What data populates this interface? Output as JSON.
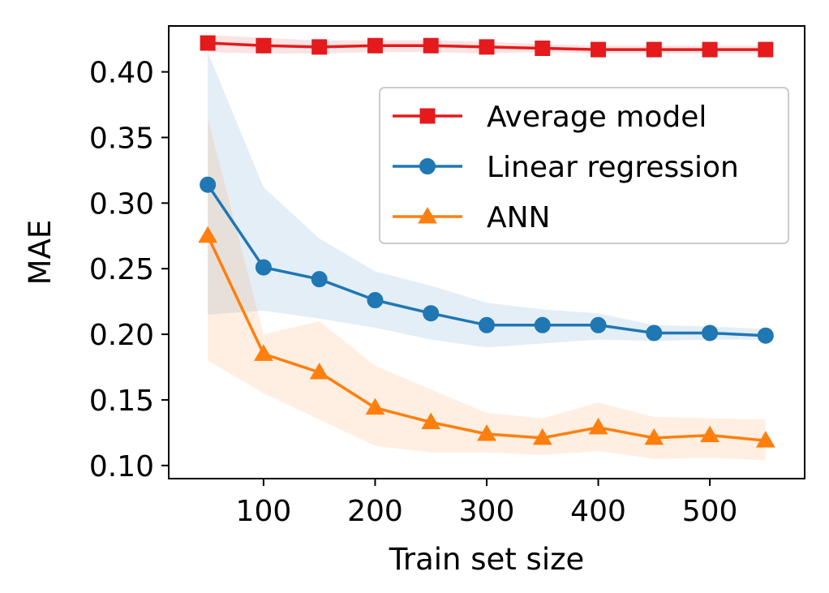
{
  "chart_data": {
    "type": "line",
    "title": "",
    "xlabel": "Train set size",
    "ylabel": "MAE",
    "xlim": [
      15,
      585
    ],
    "ylim": [
      0.09,
      0.435
    ],
    "xticks": [
      100,
      200,
      300,
      400,
      500
    ],
    "yticks": [
      0.1,
      0.15,
      0.2,
      0.25,
      0.3,
      0.35,
      0.4
    ],
    "ytick_labels": [
      "0.10",
      "0.15",
      "0.20",
      "0.25",
      "0.30",
      "0.35",
      "0.40"
    ],
    "grid": false,
    "legend_position": "upper-right",
    "x": [
      50,
      100,
      150,
      200,
      250,
      300,
      350,
      400,
      450,
      500,
      550
    ],
    "series": [
      {
        "name": "Average model",
        "color": "#e41a1c",
        "marker": "square",
        "values": [
          0.422,
          0.42,
          0.419,
          0.42,
          0.42,
          0.419,
          0.418,
          0.417,
          0.417,
          0.417,
          0.417
        ],
        "band_lower": [
          0.415,
          0.414,
          0.414,
          0.415,
          0.415,
          0.414,
          0.415,
          0.414,
          0.414,
          0.414,
          0.414
        ],
        "band_upper": [
          0.428,
          0.426,
          0.424,
          0.424,
          0.424,
          0.423,
          0.421,
          0.42,
          0.42,
          0.42,
          0.42
        ]
      },
      {
        "name": "Linear regression",
        "color": "#1f77b4",
        "marker": "circle",
        "values": [
          0.314,
          0.251,
          0.242,
          0.226,
          0.216,
          0.207,
          0.207,
          0.207,
          0.201,
          0.201,
          0.199
        ],
        "band_lower": [
          0.215,
          0.218,
          0.212,
          0.205,
          0.196,
          0.19,
          0.193,
          0.196,
          0.195,
          0.196,
          0.196
        ],
        "band_upper": [
          0.415,
          0.312,
          0.273,
          0.248,
          0.237,
          0.224,
          0.219,
          0.216,
          0.207,
          0.206,
          0.204
        ]
      },
      {
        "name": "ANN",
        "color": "#ff7f0e",
        "marker": "triangle",
        "values": [
          0.275,
          0.185,
          0.171,
          0.144,
          0.133,
          0.124,
          0.121,
          0.129,
          0.121,
          0.123,
          0.119
        ],
        "band_lower": [
          0.18,
          0.155,
          0.135,
          0.115,
          0.11,
          0.11,
          0.108,
          0.111,
          0.105,
          0.106,
          0.104
        ],
        "band_upper": [
          0.365,
          0.2,
          0.21,
          0.176,
          0.158,
          0.14,
          0.136,
          0.148,
          0.137,
          0.136,
          0.135
        ]
      }
    ]
  }
}
